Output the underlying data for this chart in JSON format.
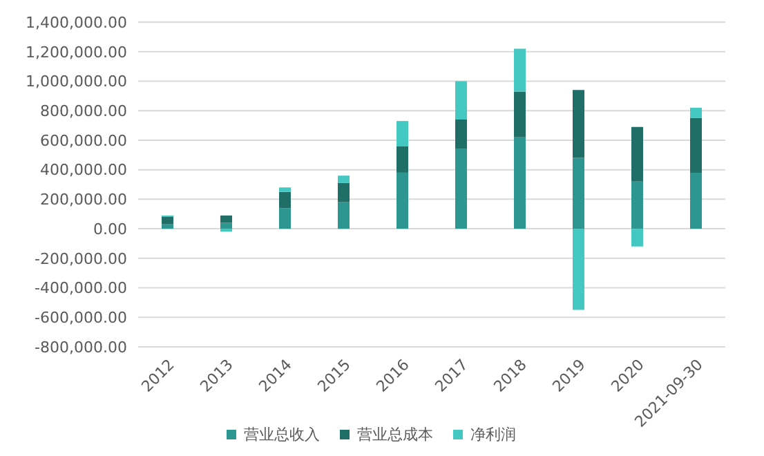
{
  "chart_data": {
    "type": "bar",
    "stacked": true,
    "categories": [
      "2012",
      "2013",
      "2014",
      "2015",
      "2016",
      "2017",
      "2018",
      "2019",
      "2020",
      "2021-09-30"
    ],
    "series": [
      {
        "name": "营业总收入",
        "color": "#2e9690",
        "values": [
          30000,
          40000,
          140000,
          180000,
          380000,
          540000,
          620000,
          480000,
          320000,
          380000
        ]
      },
      {
        "name": "营业总成本",
        "color": "#1f6e68",
        "values": [
          50000,
          50000,
          110000,
          130000,
          180000,
          200000,
          310000,
          460000,
          370000,
          370000
        ]
      },
      {
        "name": "净利润",
        "color": "#45c8c2",
        "values": [
          10000,
          -20000,
          30000,
          50000,
          170000,
          260000,
          290000,
          -550000,
          -120000,
          70000
        ]
      }
    ],
    "ylim": [
      -800000,
      1400000
    ],
    "yticks": [
      {
        "value": -800000,
        "label": "-800,000.00"
      },
      {
        "value": -600000,
        "label": "-600,000.00"
      },
      {
        "value": -400000,
        "label": "-400,000.00"
      },
      {
        "value": -200000,
        "label": "-200,000.00"
      },
      {
        "value": 0,
        "label": "0.00"
      },
      {
        "value": 200000,
        "label": "200,000.00"
      },
      {
        "value": 400000,
        "label": "400,000.00"
      },
      {
        "value": 600000,
        "label": "600,000.00"
      },
      {
        "value": 800000,
        "label": "800,000.00"
      },
      {
        "value": 1000000,
        "label": "1,000,000.00"
      },
      {
        "value": 1200000,
        "label": "1,200,000.00"
      },
      {
        "value": 1400000,
        "label": "1,400,000.00"
      }
    ],
    "grid": "y",
    "legend": "bottom"
  }
}
